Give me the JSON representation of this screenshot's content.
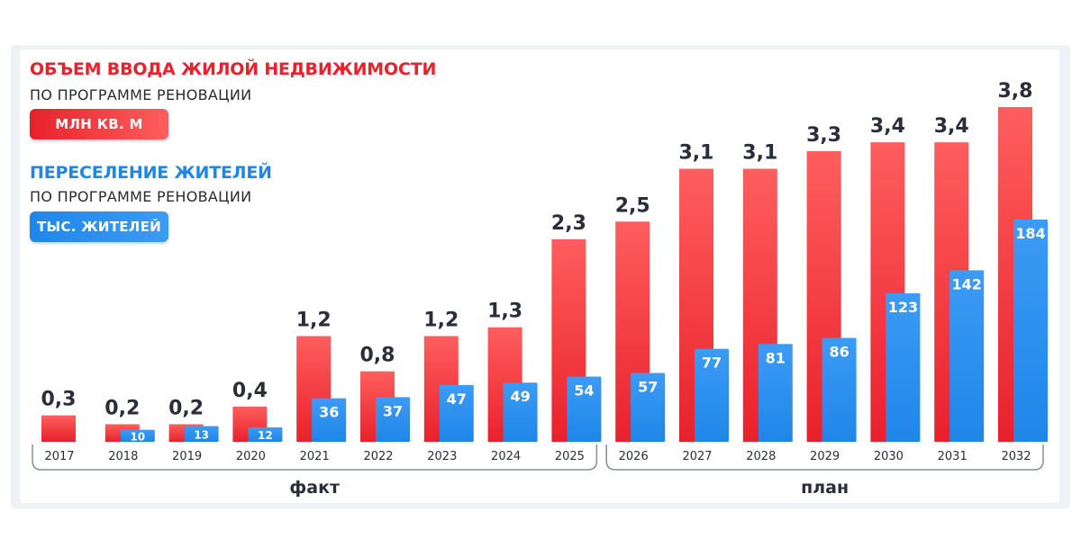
{
  "colors": {
    "red": "#e8212b",
    "red_light": "#ff5e5e",
    "blue": "#1f86e8",
    "blue_light": "#3c9bf5",
    "text_dark": "#2b2d3a",
    "axis": "#8a8d96"
  },
  "legend": {
    "housing_title": "ОБЪЕМ ВВОДА ЖИЛОЙ НЕДВИЖИМОСТИ",
    "housing_sub": "ПО ПРОГРАММЕ РЕНОВАЦИИ",
    "housing_unit": "МЛН КВ. М",
    "residents_title": "ПЕРЕСЕЛЕНИЕ ЖИТЕЛЕЙ",
    "residents_sub": "ПО ПРОГРАММЕ РЕНОВАЦИИ",
    "residents_unit": "ТЫС. ЖИТЕЛЕЙ"
  },
  "chart_data": {
    "type": "bar",
    "categories": [
      "2017",
      "2018",
      "2019",
      "2020",
      "2021",
      "2022",
      "2023",
      "2024",
      "2025",
      "2026",
      "2027",
      "2028",
      "2029",
      "2030",
      "2031",
      "2032"
    ],
    "series": [
      {
        "key": "housing",
        "values": [
          0.3,
          0.2,
          0.2,
          0.4,
          1.2,
          0.8,
          1.2,
          1.3,
          2.3,
          2.5,
          3.1,
          3.1,
          3.3,
          3.4,
          3.4,
          3.8
        ],
        "labels": [
          "0,3",
          "0,2",
          "0,2",
          "0,4",
          "1,2",
          "0,8",
          "1,2",
          "1,3",
          "2,3",
          "2,5",
          "3,1",
          "3,1",
          "3,3",
          "3,4",
          "3,4",
          "3,8"
        ]
      },
      {
        "key": "residents",
        "values": [
          null,
          10,
          13,
          12,
          36,
          37,
          47,
          49,
          54,
          57,
          77,
          81,
          86,
          123,
          142,
          184
        ],
        "labels": [
          "",
          "10",
          "13",
          "12",
          "36",
          "37",
          "47",
          "49",
          "54",
          "57",
          "77",
          "81",
          "86",
          "123",
          "142",
          "184"
        ]
      }
    ],
    "groups": [
      {
        "label": "факт",
        "from": 0,
        "to": 8
      },
      {
        "label": "план",
        "from": 9,
        "to": 15
      }
    ]
  }
}
